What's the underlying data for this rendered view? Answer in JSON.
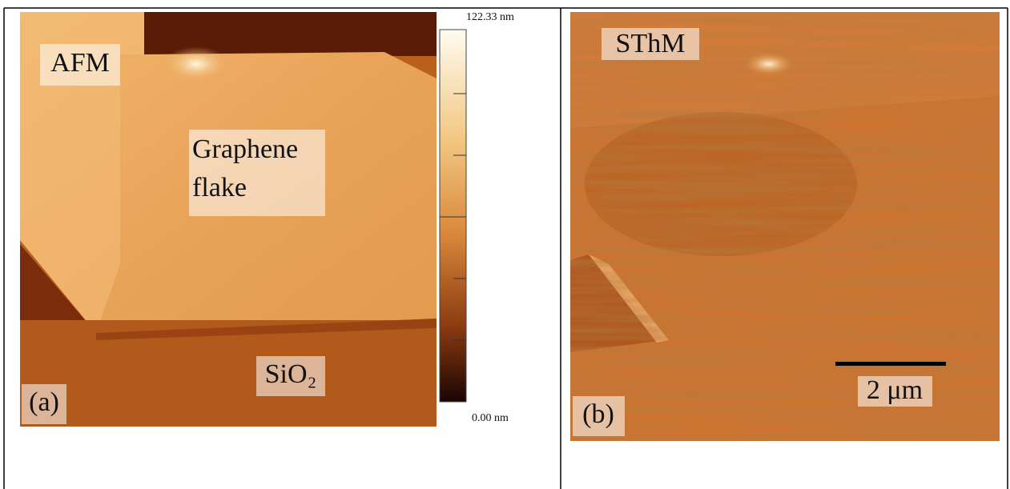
{
  "panel_a": {
    "label": "(a)",
    "mode": "AFM",
    "flake_label": [
      "Graphene",
      "flake"
    ],
    "substrate_label": "SiO₂",
    "colorbar": {
      "max": "122.33 nm",
      "min": "0.00 nm"
    }
  },
  "panel_b": {
    "label": "(b)",
    "mode": "SThM",
    "scale_bar": "2 μm"
  }
}
